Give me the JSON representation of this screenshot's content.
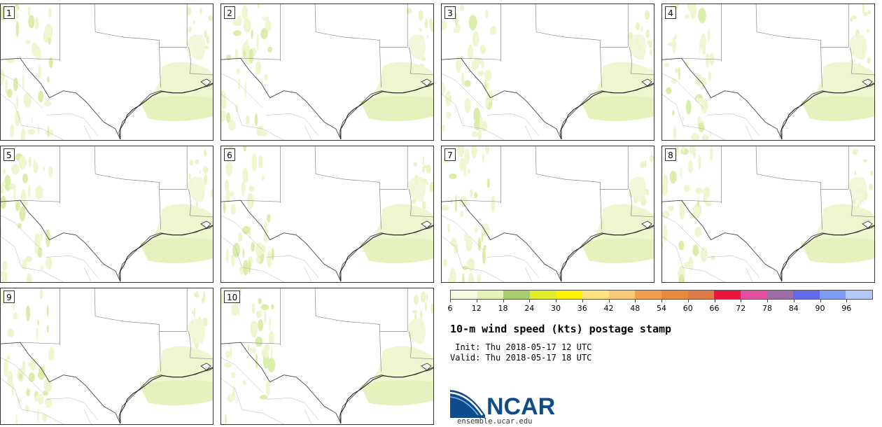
{
  "panels": [
    {
      "label": "1"
    },
    {
      "label": "2"
    },
    {
      "label": "3"
    },
    {
      "label": "4"
    },
    {
      "label": "5"
    },
    {
      "label": "6"
    },
    {
      "label": "7"
    },
    {
      "label": "8"
    },
    {
      "label": "9"
    },
    {
      "label": "10"
    }
  ],
  "colorbar": {
    "ticks": [
      "6",
      "12",
      "18",
      "24",
      "30",
      "36",
      "42",
      "48",
      "54",
      "60",
      "66",
      "72",
      "78",
      "84",
      "90",
      "96"
    ],
    "colors": [
      "#f4f9df",
      "#e4f2b6",
      "#a9cd6d",
      "#e0ef2a",
      "#fff200",
      "#ffe37e",
      "#f7c978",
      "#ef9f4c",
      "#e8893d",
      "#de7a45",
      "#e8163d",
      "#e24f9e",
      "#a06ca8",
      "#6469e8",
      "#7d9cf3",
      "#b3c8f8"
    ]
  },
  "title": "10-m wind speed (kts) postage stamp",
  "init_line": " Init: Thu 2018-05-17 12 UTC",
  "valid_line": "Valid: Thu 2018-05-17 18 UTC",
  "logo": {
    "text": "NCAR",
    "url": "ensemble.ucar.edu",
    "brand_color": "#0f4c8e"
  }
}
